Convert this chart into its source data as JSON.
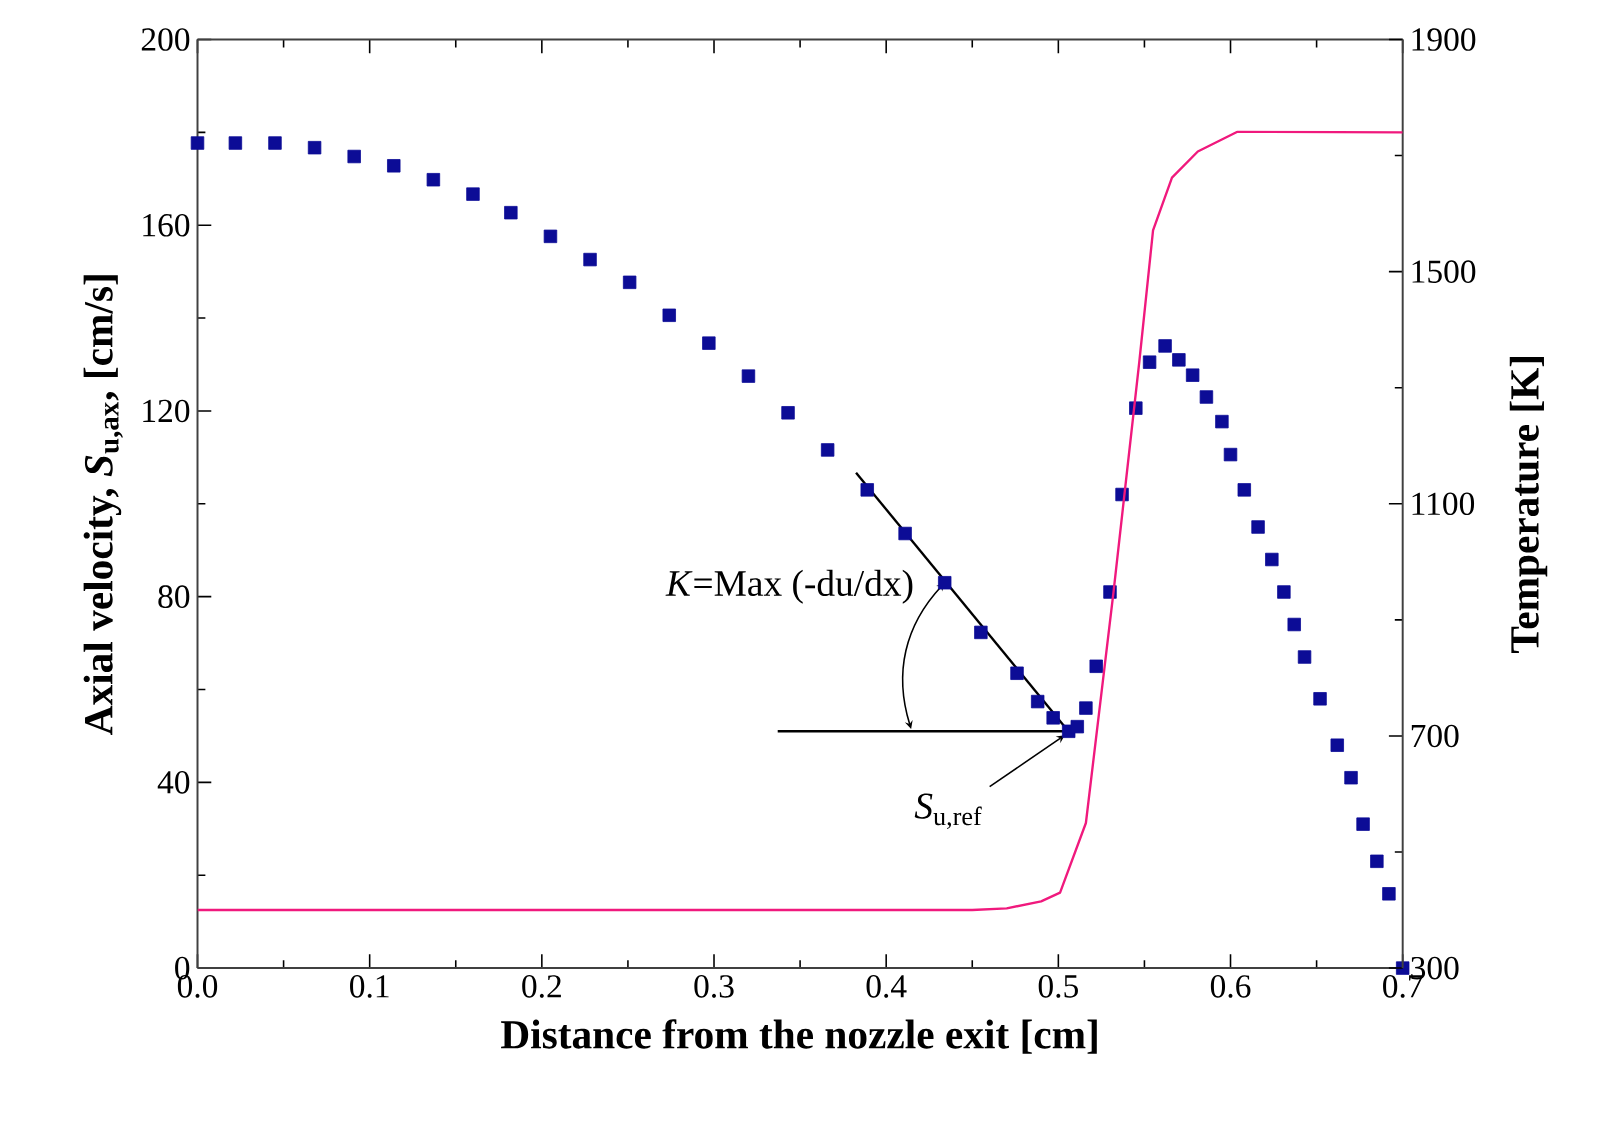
{
  "chart_data": {
    "type": "scatter",
    "xlabel": "Distance from the nozzle exit [cm]",
    "ylabel": "Axial velocity, *S*$_{u,ax}$, [cm/s]",
    "y2label": "Temperature [K]",
    "xlim": [
      0,
      0.7
    ],
    "xticks": [
      {
        "value": 0,
        "label": "0.0"
      },
      0.1,
      0.2,
      0.3,
      0.4,
      0.5,
      0.6,
      0.7
    ],
    "ylim": [
      0,
      200
    ],
    "yticks": [
      0,
      40,
      80,
      120,
      160,
      200
    ],
    "y2lim": [
      300,
      1900
    ],
    "y2ticks": [
      300,
      700,
      1100,
      1500,
      1900
    ],
    "grid": false,
    "annotations": [
      {
        "text": "*K*=Max (-du/dx)",
        "x": 0.434,
        "y": 83
      },
      {
        "text": "*S*$_{u,ref}$",
        "x": 0.506,
        "y": 51
      }
    ],
    "series": [
      {
        "marker": "square",
        "color": "#0c0c96",
        "x": [
          0,
          0.022,
          0.045,
          0.068,
          0.091,
          0.114,
          0.137,
          0.16,
          0.182,
          0.205,
          0.228,
          0.251,
          0.274,
          0.297,
          0.32,
          0.343,
          0.366,
          0.389,
          0.411,
          0.434,
          0.455,
          0.476,
          0.488,
          0.497,
          0.506,
          0.511,
          0.516,
          0.522,
          0.53,
          0.537,
          0.545,
          0.553,
          0.562,
          0.57,
          0.578,
          0.586,
          0.595,
          0.6,
          0.608,
          0.616,
          0.624,
          0.631,
          0.637,
          0.643,
          0.652,
          0.662,
          0.67,
          0.677,
          0.685,
          0.692,
          0.7
        ],
        "values": [
          177.7,
          177.7,
          177.7,
          176.7,
          174.8,
          172.8,
          169.8,
          166.7,
          162.7,
          157.6,
          152.6,
          147.7,
          140.6,
          134.6,
          127.5,
          119.6,
          111.6,
          103,
          93.6,
          83,
          72.3,
          63.5,
          57.4,
          53.9,
          51,
          52,
          56,
          65,
          81,
          102,
          120.6,
          130.5,
          134,
          131,
          127.7,
          123,
          117.7,
          110.6,
          103,
          95,
          88,
          81,
          74,
          67,
          58,
          48,
          41,
          31,
          23,
          16,
          0
        ]
      },
      {
        "type": "line",
        "axis": "y2",
        "line_style": "solid",
        "marker": "none",
        "color": "#f0197d",
        "x": [
          0,
          0.2,
          0.45,
          0.47,
          0.49,
          0.501,
          0.516,
          0.532,
          0.547,
          0.555,
          0.566,
          0.581,
          0.604,
          0.7
        ],
        "values": [
          400,
          400,
          400,
          403,
          415,
          430,
          550,
          947,
          1344,
          1571,
          1662,
          1707,
          1741,
          1740
        ]
      },
      {
        "type": "line",
        "line_style": "solid",
        "marker": "none",
        "color": "#000000",
        "x": [
          0.3825,
          0.505
        ],
        "values": [
          106.7,
          51.4
        ]
      },
      {
        "type": "line",
        "line_style": "solid",
        "marker": "none",
        "color": "#000000",
        "x": [
          0.337,
          0.505
        ],
        "values": [
          51,
          51
        ]
      }
    ]
  }
}
